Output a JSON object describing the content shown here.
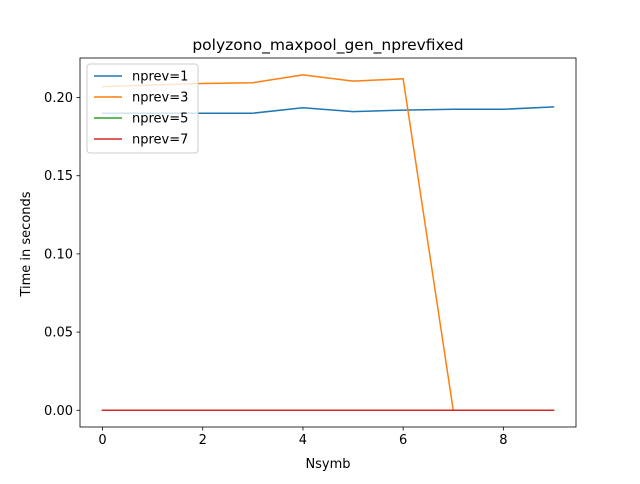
{
  "chart_data": {
    "type": "line",
    "title": "polyzono_maxpool_gen_nprevfixed",
    "xlabel": "Nsymb",
    "ylabel": "Time in seconds",
    "xlim": [
      -0.45,
      9.45
    ],
    "ylim": [
      -0.0107,
      0.2253
    ],
    "xticks": [
      0,
      2,
      4,
      6,
      8
    ],
    "xtick_labels": [
      "0",
      "2",
      "4",
      "6",
      "8"
    ],
    "yticks": [
      0.0,
      0.05,
      0.1,
      0.15,
      0.2
    ],
    "ytick_labels": [
      "0.00",
      "0.05",
      "0.10",
      "0.15",
      "0.20"
    ],
    "grid": false,
    "legend_position": "upper-left",
    "x": [
      0,
      1,
      2,
      3,
      4,
      5,
      6,
      7,
      8,
      9
    ],
    "series": [
      {
        "name": "nprev=1",
        "color": "#1f77b4",
        "values": [
          0.19,
          0.19,
          0.19,
          0.19,
          0.1935,
          0.191,
          0.192,
          0.1925,
          0.1925,
          0.194
        ]
      },
      {
        "name": "nprev=3",
        "color": "#ff7f0e",
        "values": [
          0.207,
          0.208,
          0.209,
          0.2095,
          0.2145,
          0.2105,
          0.212,
          0.0,
          0.0,
          0.0
        ]
      },
      {
        "name": "nprev=5",
        "color": "#2ca02c",
        "values": [
          0.0,
          0.0,
          0.0,
          0.0,
          0.0,
          0.0,
          0.0,
          0.0,
          0.0,
          0.0
        ]
      },
      {
        "name": "nprev=7",
        "color": "#d62728",
        "values": [
          0.0,
          0.0,
          0.0,
          0.0,
          0.0,
          0.0,
          0.0,
          0.0,
          0.0,
          0.0
        ]
      }
    ]
  }
}
